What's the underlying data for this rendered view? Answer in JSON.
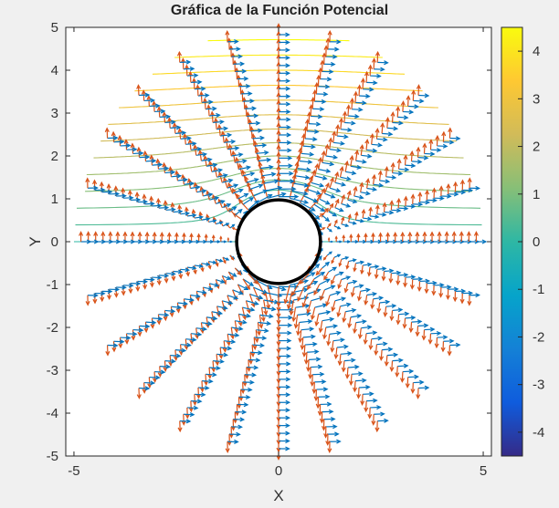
{
  "chart_data": {
    "type": "contour+quiver",
    "title": "Gráfica de la Función Potencial",
    "xlabel": "X",
    "ylabel": "Y",
    "xlim": [
      -5.2,
      5.2
    ],
    "ylim": [
      -5,
      5
    ],
    "xticks": [
      -5,
      0,
      5
    ],
    "yticks": [
      5,
      4,
      3,
      2,
      1,
      0,
      -1,
      -2,
      -3,
      -4,
      -5
    ],
    "grid": false,
    "domain": {
      "r_min": 1,
      "r_max": 5,
      "rays": 24
    },
    "circle": {
      "center": [
        0,
        0
      ],
      "radius": 1,
      "color": "#000000"
    },
    "contour_levels": {
      "min": -4.5,
      "max": 4.5,
      "count": 25
    },
    "quiver_series": [
      {
        "color": "#0072bd"
      },
      {
        "color": "#d95319"
      }
    ],
    "colorbar": {
      "range": [
        -4.5,
        4.5
      ],
      "ticks": [
        4,
        3,
        2,
        1,
        0,
        -1,
        -2,
        -3,
        -4
      ],
      "colormap": [
        "#352a87",
        "#0f5cdd",
        "#1481d6",
        "#06a4ca",
        "#2eb7a4",
        "#87bf77",
        "#d1bb59",
        "#fec832",
        "#f9fb0e"
      ]
    }
  }
}
